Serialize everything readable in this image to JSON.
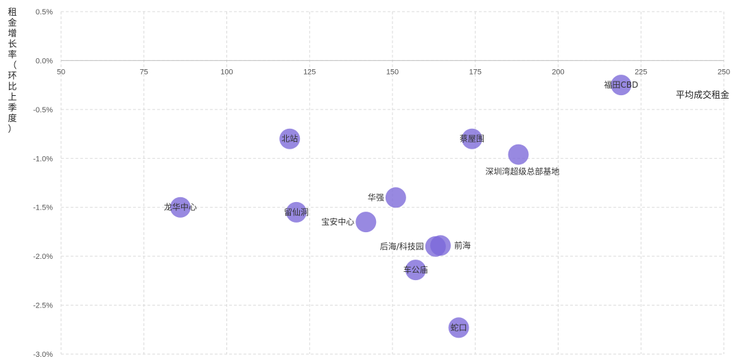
{
  "chart_data": {
    "type": "scatter",
    "title": "",
    "xlabel": "平均成交租金",
    "ylabel": "租金增长率（环比上季度）",
    "xlim": [
      50,
      250
    ],
    "ylim": [
      -3.0,
      0.5
    ],
    "x_ticks": [
      50,
      75,
      100,
      125,
      150,
      175,
      200,
      225,
      250
    ],
    "y_ticks": [
      0.5,
      0.0,
      -0.5,
      -1.0,
      -1.5,
      -2.0,
      -2.5,
      -3.0
    ],
    "y_tick_labels": [
      "0.5%",
      "0.0%",
      "-0.5%",
      "-1.0%",
      "-1.5%",
      "-2.0%",
      "-2.5%",
      "-3.0%"
    ],
    "x_tick_labels": [
      "50",
      "75",
      "100",
      "125",
      "150",
      "175",
      "200",
      "225",
      "250"
    ],
    "grid": true,
    "marker_color": "#7B68D9",
    "points": [
      {
        "name": "福田CBD",
        "x": 219,
        "y": -0.25,
        "label_pos": "center"
      },
      {
        "name": "北站",
        "x": 119,
        "y": -0.8,
        "label_pos": "center"
      },
      {
        "name": "蔡屋围",
        "x": 174,
        "y": -0.8,
        "label_pos": "center"
      },
      {
        "name": "深圳湾超级总部基地",
        "x": 188,
        "y": -0.96,
        "label_pos": "below-right"
      },
      {
        "name": "龙华中心",
        "x": 86,
        "y": -1.5,
        "label_pos": "center"
      },
      {
        "name": "华强",
        "x": 151,
        "y": -1.4,
        "label_pos": "left"
      },
      {
        "name": "留仙洞",
        "x": 121,
        "y": -1.55,
        "label_pos": "center"
      },
      {
        "name": "宝安中心",
        "x": 142,
        "y": -1.65,
        "label_pos": "left"
      },
      {
        "name": "后海/科技园",
        "x": 163,
        "y": -1.9,
        "label_pos": "left"
      },
      {
        "name": "前海",
        "x": 164.5,
        "y": -1.89,
        "label_pos": "right"
      },
      {
        "name": "车公庙",
        "x": 157,
        "y": -2.14,
        "label_pos": "center"
      },
      {
        "name": "蛇口",
        "x": 170,
        "y": -2.73,
        "label_pos": "center"
      }
    ]
  }
}
